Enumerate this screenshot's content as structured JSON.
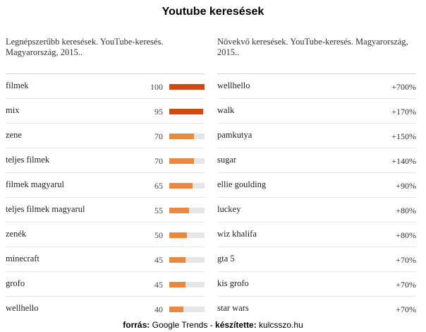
{
  "title": "Youtube keresések",
  "colors": {
    "bar_high": "#d4470e",
    "bar_low": "#e8893f",
    "track": "#e6e6e6"
  },
  "left": {
    "subtitle": "Legnépszerűbb keresések. YouTube-keresés. Magyarország, 2015..",
    "items": [
      {
        "term": "filmek",
        "score": 100
      },
      {
        "term": "mix",
        "score": 95
      },
      {
        "term": "zene",
        "score": 70
      },
      {
        "term": "teljes filmek",
        "score": 70
      },
      {
        "term": "filmek magyarul",
        "score": 65
      },
      {
        "term": "teljes filmek magyarul",
        "score": 55
      },
      {
        "term": "zenék",
        "score": 50
      },
      {
        "term": "minecraft",
        "score": 45
      },
      {
        "term": "grofo",
        "score": 45
      },
      {
        "term": "wellhello",
        "score": 40
      }
    ]
  },
  "right": {
    "subtitle": "Növekvő keresések. YouTube-keresés. Magyarország, 2015..",
    "items": [
      {
        "term": "wellhello",
        "change": "+700%"
      },
      {
        "term": "walk",
        "change": "+170%"
      },
      {
        "term": "pamkutya",
        "change": "+150%"
      },
      {
        "term": "sugar",
        "change": "+140%"
      },
      {
        "term": "ellie goulding",
        "change": "+90%"
      },
      {
        "term": "luckey",
        "change": "+80%"
      },
      {
        "term": "wiz khalifa",
        "change": "+80%"
      },
      {
        "term": "gta 5",
        "change": "+70%"
      },
      {
        "term": "kis grofo",
        "change": "+70%"
      },
      {
        "term": "star wars",
        "change": "+70%"
      }
    ]
  },
  "footer": {
    "source_label": "forrás:",
    "source_value": "Google Trends",
    "separator": "-",
    "made_by_label": "készítette:",
    "made_by_value": "kulcsszo.hu"
  }
}
